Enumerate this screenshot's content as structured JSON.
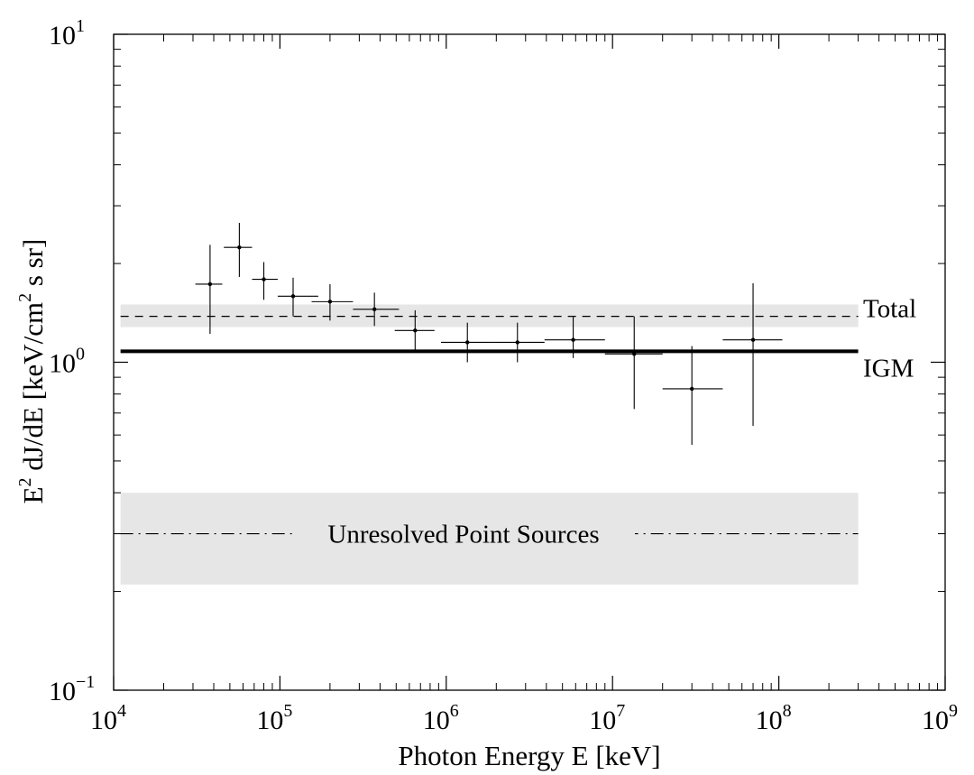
{
  "chart_data": {
    "type": "scatter",
    "xlabel": "Photon Energy E [keV]",
    "ylabel": {
      "base": "E",
      "sup1": "2",
      "mid": " dJ/dE [keV/cm",
      "sup2": "2",
      "end": " s sr]"
    },
    "xscale": "log",
    "yscale": "log",
    "xlim": [
      10000,
      1000000000
    ],
    "ylim": [
      0.1,
      10
    ],
    "x_ticks": [
      {
        "base": "10",
        "exp": "4"
      },
      {
        "base": "10",
        "exp": "5"
      },
      {
        "base": "10",
        "exp": "6"
      },
      {
        "base": "10",
        "exp": "7"
      },
      {
        "base": "10",
        "exp": "8"
      },
      {
        "base": "10",
        "exp": "9"
      }
    ],
    "y_ticks": [
      {
        "base": "10",
        "exp": "−1"
      },
      {
        "base": "10",
        "exp": "0"
      },
      {
        "base": "10",
        "exp": "1"
      }
    ],
    "grid": false,
    "points": [
      {
        "x": 38000,
        "y": 1.73,
        "xlo": 31000,
        "xhi": 45000,
        "ylo": 1.22,
        "yhi": 2.28
      },
      {
        "x": 57000,
        "y": 2.24,
        "xlo": 46000,
        "xhi": 68000,
        "ylo": 1.82,
        "yhi": 2.66
      },
      {
        "x": 80000,
        "y": 1.79,
        "xlo": 68000,
        "xhi": 97000,
        "ylo": 1.55,
        "yhi": 2.02
      },
      {
        "x": 120000,
        "y": 1.59,
        "xlo": 97000,
        "xhi": 170000,
        "ylo": 1.38,
        "yhi": 1.81
      },
      {
        "x": 200000,
        "y": 1.53,
        "xlo": 155000,
        "xhi": 275000,
        "ylo": 1.34,
        "yhi": 1.73
      },
      {
        "x": 370000,
        "y": 1.45,
        "xlo": 275000,
        "xhi": 520000,
        "ylo": 1.29,
        "yhi": 1.63
      },
      {
        "x": 650000,
        "y": 1.25,
        "xlo": 490000,
        "xhi": 850000,
        "ylo": 1.09,
        "yhi": 1.44
      },
      {
        "x": 1340000,
        "y": 1.15,
        "xlo": 930000,
        "xhi": 1920000,
        "ylo": 1.0,
        "yhi": 1.32
      },
      {
        "x": 2680000,
        "y": 1.15,
        "xlo": 1920000,
        "xhi": 3900000,
        "ylo": 1.0,
        "yhi": 1.32
      },
      {
        "x": 5800000,
        "y": 1.17,
        "xlo": 3900000,
        "xhi": 9000000,
        "ylo": 1.03,
        "yhi": 1.38
      },
      {
        "x": 13500000,
        "y": 1.06,
        "xlo": 9000000,
        "xhi": 20000000,
        "ylo": 0.72,
        "yhi": 1.38
      },
      {
        "x": 30000000,
        "y": 0.83,
        "xlo": 20000000,
        "xhi": 46000000,
        "ylo": 0.56,
        "yhi": 1.12
      },
      {
        "x": 70000000,
        "y": 1.17,
        "xlo": 46000000,
        "xhi": 105000000,
        "ylo": 0.64,
        "yhi": 1.74
      }
    ],
    "lines": [
      {
        "label": "Total",
        "y": 1.38,
        "band": [
          1.28,
          1.5
        ],
        "style": "dashed"
      },
      {
        "label": "IGM",
        "y": 1.08,
        "style": "solid-thick"
      },
      {
        "label": "Unresolved Point Sources",
        "y": 0.3,
        "band": [
          0.21,
          0.4
        ],
        "style": "dash-dot"
      }
    ],
    "line_x_range": [
      11000,
      300000000
    ],
    "colors": {
      "band": "#e6e6e6",
      "ink": "#000000"
    }
  }
}
